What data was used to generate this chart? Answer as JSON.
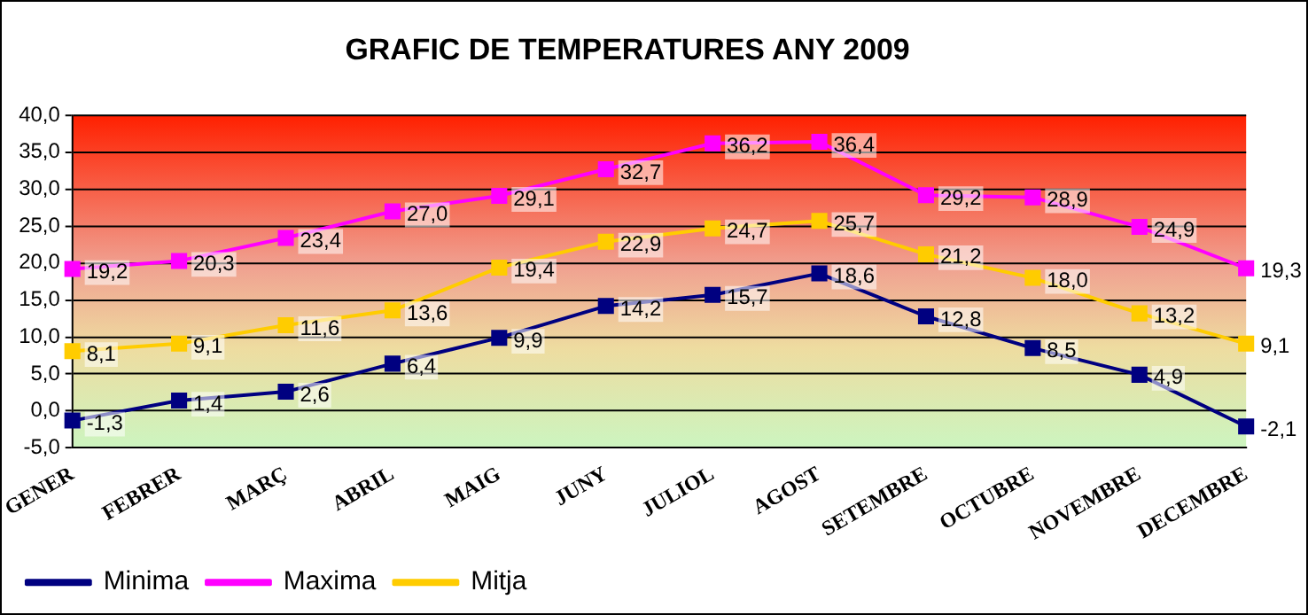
{
  "chart_data": {
    "type": "line",
    "title": "GRAFIC DE TEMPERATURES ANY 2009",
    "categories": [
      "GENER",
      "FEBRER",
      "MARÇ",
      "ABRIL",
      "MAIG",
      "JUNY",
      "JULIOL",
      "AGOST",
      "SETEMBRE",
      "OCTUBRE",
      "NOVEMBRE",
      "DECEMBRE"
    ],
    "series": [
      {
        "name": "Minima",
        "color": "#000080",
        "values": [
          -1.3,
          1.4,
          2.6,
          6.4,
          9.9,
          14.2,
          15.7,
          18.6,
          12.8,
          8.5,
          4.9,
          -2.1
        ],
        "value_labels": [
          "-1,3",
          "1,4",
          "2,6",
          "6,4",
          "9,9",
          "14,2",
          "15,7",
          "18,6",
          "12,8",
          "8,5",
          "4,9",
          "-2,1"
        ]
      },
      {
        "name": "Maxima",
        "color": "#ff00ff",
        "values": [
          19.2,
          20.3,
          23.4,
          27.0,
          29.1,
          32.7,
          36.2,
          36.4,
          29.2,
          28.9,
          24.9,
          19.3
        ],
        "value_labels": [
          "19,2",
          "20,3",
          "23,4",
          "27,0",
          "29,1",
          "32,7",
          "36,2",
          "36,4",
          "29,2",
          "28,9",
          "24,9",
          "19,3"
        ]
      },
      {
        "name": "Mitja",
        "color": "#ffcc00",
        "values": [
          8.1,
          9.1,
          11.6,
          13.6,
          19.4,
          22.9,
          24.7,
          25.7,
          21.2,
          18.0,
          13.2,
          9.1
        ],
        "value_labels": [
          "8,1",
          "9,1",
          "11,6",
          "13,6",
          "19,4",
          "22,9",
          "24,7",
          "25,7",
          "21,2",
          "18,0",
          "13,2",
          "9,1"
        ]
      }
    ],
    "ylim": [
      -5,
      40
    ],
    "yticks": [
      {
        "value": -5,
        "label": "-5,0"
      },
      {
        "value": 0,
        "label": "0,0"
      },
      {
        "value": 5,
        "label": "5,0"
      },
      {
        "value": 10,
        "label": "10,0"
      },
      {
        "value": 15,
        "label": "15,0"
      },
      {
        "value": 20,
        "label": "20,0"
      },
      {
        "value": 25,
        "label": "25,0"
      },
      {
        "value": 30,
        "label": "30,0"
      },
      {
        "value": 35,
        "label": "35,0"
      },
      {
        "value": 40,
        "label": "40,0"
      }
    ],
    "grid": "y",
    "legend": "bottom left",
    "marker": "square",
    "line_style": "solid"
  }
}
